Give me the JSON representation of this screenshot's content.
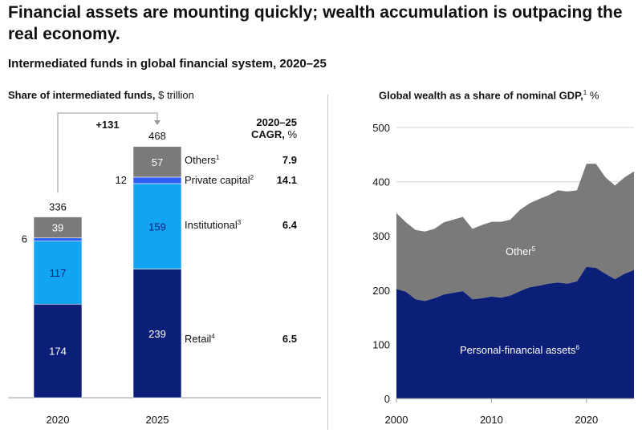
{
  "title": "Financial assets are mounting quickly; wealth accumulation is outpacing the real economy.",
  "subtitle": "Intermediated funds in global financial system, 2020–25",
  "left_panel": {
    "title_bold": "Share of intermediated funds,",
    "title_unit": " $ trillion",
    "cagr_header_line1": "2020–25",
    "cagr_header_line2": "CAGR,",
    "cagr_header_unit": " %",
    "delta_label": "+131"
  },
  "right_panel": {
    "title_bold": "Global wealth as a share of nominal GDP,",
    "title_sup": "1",
    "title_unit": " %",
    "label_other": "Other",
    "label_other_sup": "5",
    "label_pfa": "Personal-financial assets",
    "label_pfa_sup": "6"
  },
  "colors": {
    "retail": "#0b1f78",
    "institutional": "#12a4f0",
    "private_capital": "#2f5ff5",
    "others": "#7a7a7a",
    "pfa": "#0b1f78",
    "other_area": "#7a7a7a"
  },
  "chart_data": [
    {
      "type": "bar",
      "stacked": true,
      "categories": [
        "2020",
        "2025"
      ],
      "totals": [
        336,
        468
      ],
      "series": [
        {
          "name": "Retail",
          "sup": "4",
          "values": [
            174,
            239
          ],
          "cagr": "6.5"
        },
        {
          "name": "Institutional",
          "sup": "3",
          "values": [
            117,
            159
          ],
          "cagr": "6.4"
        },
        {
          "name": "Private capital",
          "sup": "2",
          "values": [
            6,
            12
          ],
          "cagr": "14.1"
        },
        {
          "name": "Others",
          "sup": "1",
          "values": [
            39,
            57
          ],
          "cagr": "7.9"
        }
      ],
      "grid": false
    },
    {
      "type": "area",
      "stacked": true,
      "x": [
        2000,
        2001,
        2002,
        2003,
        2004,
        2005,
        2006,
        2007,
        2008,
        2009,
        2010,
        2011,
        2012,
        2013,
        2014,
        2015,
        2016,
        2017,
        2018,
        2019,
        2020,
        2021,
        2022,
        2023,
        2024,
        2025
      ],
      "series": [
        {
          "name": "Personal-financial assets",
          "values": [
            202,
            197,
            183,
            180,
            185,
            192,
            195,
            198,
            183,
            185,
            188,
            186,
            190,
            198,
            205,
            208,
            212,
            214,
            212,
            216,
            243,
            241,
            230,
            220,
            230,
            237
          ]
        },
        {
          "name": "Other",
          "values": [
            140,
            128,
            128,
            128,
            128,
            133,
            135,
            137,
            130,
            135,
            138,
            140,
            140,
            150,
            155,
            160,
            163,
            170,
            170,
            168,
            190,
            192,
            178,
            173,
            178,
            182
          ]
        }
      ],
      "xticks": [
        2000,
        2010,
        2020
      ],
      "yticks": [
        0,
        100,
        200,
        300,
        400,
        500
      ],
      "ylim": [
        0,
        500
      ],
      "xlim": [
        2000,
        2025
      ],
      "grid": "horizontal"
    }
  ]
}
